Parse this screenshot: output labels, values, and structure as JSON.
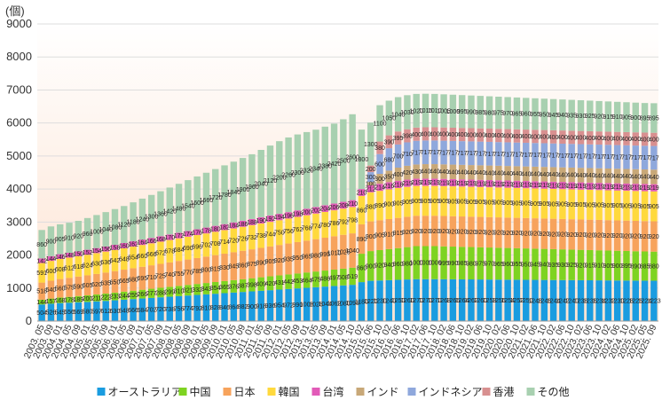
{
  "chart_data": {
    "type": "bar",
    "stacked": true,
    "ylabel": "(個)",
    "ylim": [
      0,
      9000
    ],
    "yticks": [
      0,
      1000,
      2000,
      3000,
      4000,
      5000,
      6000,
      7000,
      8000,
      9000
    ],
    "grid": true,
    "legend_position": "bottom",
    "categories": [
      "2003. 05",
      "2003. 09",
      "2004. 01",
      "2004. 05",
      "2004. 09",
      "2005. 01",
      "2005. 05",
      "2005. 09",
      "2006. 01",
      "2006. 05",
      "2006. 09",
      "2007. 01",
      "2007. 05",
      "2007. 09",
      "2008. 01",
      "2008. 05",
      "2008. 09",
      "2009. 01",
      "2009. 05",
      "2009. 09",
      "2010. 01",
      "2010. 05",
      "2010. 09",
      "2011. 01",
      "2011. 05",
      "2011. 09",
      "2012. 01",
      "2012. 05",
      "2012. 09",
      "2013. 01",
      "2013. 05",
      "2013. 09",
      "2014. 01",
      "2014. 05",
      "2014. 10",
      "2015. 02",
      "2015. 06",
      "2015. 10",
      "2016. 02",
      "2016. 06",
      "2016. 10",
      "2017. 02",
      "2017. 06",
      "2017. 10",
      "2018. 02",
      "2018. 06",
      "2018. 10",
      "2019. 02",
      "2019. 06",
      "2019. 10",
      "2020. 02",
      "2020. 06",
      "2020. 10",
      "2021. 02",
      "2021. 06",
      "2021. 10",
      "2022. 02",
      "2022. 06",
      "2022. 10",
      "2023. 02",
      "2023. 06",
      "2023. 10",
      "2024. 02",
      "2024. 06",
      "2024. 10",
      "2025. 02",
      "2025. 05",
      "2025. 09"
    ],
    "series": [
      {
        "name": "オーストラリア",
        "color": "#1a9ce0",
        "values": [
          504,
          526,
          545,
          556,
          569,
          580,
          597,
          612,
          630,
          648,
          666,
          684,
          702,
          720,
          738,
          756,
          774,
          792,
          810,
          828,
          846,
          864,
          882,
          900,
          918,
          936,
          954,
          972,
          990,
          1008,
          1026,
          1044,
          1062,
          1080,
          1098,
          1180,
          1220,
          1230,
          1240,
          1250,
          1260,
          1270,
          1270,
          1270,
          1268,
          1266,
          1264,
          1262,
          1260,
          1258,
          1256,
          1254,
          1252,
          1250,
          1248,
          1246,
          1244,
          1242,
          1240,
          1238,
          1236,
          1234,
          1232,
          1230,
          1228,
          1226,
          1224,
          1223
        ]
      },
      {
        "name": "中国",
        "color": "#7ed321",
        "values": [
          144,
          157,
          168,
          178,
          189,
          200,
          211,
          222,
          233,
          244,
          255,
          266,
          277,
          288,
          299,
          310,
          321,
          332,
          343,
          354,
          365,
          376,
          387,
          398,
          409,
          420,
          431,
          442,
          453,
          464,
          475,
          486,
          497,
          508,
          519,
          860,
          900,
          920,
          940,
          960,
          980,
          1000,
          1000,
          1000,
          995,
          990,
          985,
          980,
          975,
          970,
          965,
          960,
          955,
          950,
          945,
          940,
          935,
          930,
          925,
          920,
          915,
          910,
          905,
          900,
          895,
          890,
          885,
          880
        ]
      },
      {
        "name": "日本",
        "color": "#f7a35c",
        "values": [
          518,
          540,
          560,
          575,
          590,
          605,
          620,
          635,
          650,
          665,
          680,
          695,
          710,
          725,
          740,
          755,
          770,
          785,
          800,
          815,
          830,
          845,
          860,
          875,
          890,
          905,
          920,
          935,
          950,
          965,
          980,
          995,
          1010,
          1025,
          1040,
          890,
          900,
          905,
          910,
          915,
          920,
          920,
          920,
          920,
          920,
          920,
          920,
          920,
          920,
          920,
          920,
          920,
          920,
          920,
          920,
          920,
          920,
          920,
          920,
          920,
          920,
          920,
          920,
          920,
          920,
          920,
          920,
          920
        ]
      },
      {
        "name": "韓国",
        "color": "#ffd93d",
        "values": [
          591,
          600,
          608,
          612,
          618,
          624,
          630,
          636,
          642,
          648,
          654,
          660,
          666,
          672,
          678,
          684,
          690,
          696,
          702,
          708,
          714,
          720,
          726,
          732,
          738,
          744,
          750,
          756,
          762,
          768,
          774,
          780,
          786,
          792,
          798,
          860,
          880,
          890,
          900,
          905,
          905,
          905,
          905,
          905,
          905,
          905,
          905,
          905,
          905,
          905,
          905,
          905,
          905,
          905,
          905,
          905,
          905,
          905,
          905,
          905,
          905,
          905,
          905,
          905,
          905,
          905,
          905,
          905
        ]
      },
      {
        "name": "台湾",
        "color": "#e25bb8",
        "values": [
          142,
          144,
          146,
          148,
          150,
          152,
          154,
          156,
          158,
          160,
          162,
          164,
          166,
          168,
          170,
          172,
          174,
          176,
          178,
          180,
          182,
          184,
          186,
          188,
          190,
          192,
          194,
          196,
          198,
          200,
          202,
          204,
          206,
          208,
          210,
          210,
          212,
          214,
          216,
          218,
          219,
          219,
          219,
          219,
          219,
          219,
          219,
          219,
          219,
          219,
          219,
          219,
          219,
          219,
          219,
          219,
          219,
          219,
          219,
          219,
          219,
          219,
          219,
          219,
          219,
          219,
          219,
          219
        ]
      },
      {
        "name": "インド",
        "color": "#c8a878",
        "values": [
          0,
          0,
          0,
          0,
          0,
          0,
          0,
          0,
          0,
          0,
          0,
          0,
          0,
          0,
          0,
          0,
          0,
          0,
          0,
          0,
          0,
          0,
          0,
          0,
          0,
          0,
          0,
          0,
          0,
          0,
          0,
          0,
          0,
          0,
          0,
          0,
          100,
          300,
          350,
          400,
          420,
          430,
          440,
          440,
          440,
          440,
          440,
          440,
          440,
          440,
          440,
          440,
          440,
          440,
          440,
          440,
          440,
          440,
          440,
          440,
          440,
          440,
          440,
          440,
          440,
          440,
          440,
          440
        ]
      },
      {
        "name": "インドネシア",
        "color": "#8fa8dc",
        "values": [
          0,
          0,
          0,
          0,
          0,
          0,
          0,
          0,
          0,
          0,
          0,
          0,
          0,
          0,
          0,
          0,
          0,
          0,
          0,
          0,
          0,
          0,
          0,
          0,
          0,
          0,
          0,
          0,
          0,
          0,
          0,
          0,
          0,
          0,
          0,
          0,
          300,
          600,
          680,
          700,
          710,
          717,
          717,
          717,
          717,
          717,
          717,
          717,
          717,
          717,
          717,
          717,
          717,
          717,
          717,
          717,
          717,
          717,
          717,
          717,
          717,
          717,
          717,
          717,
          717,
          717,
          717,
          717
        ]
      },
      {
        "name": "香港",
        "color": "#d89090",
        "values": [
          0,
          0,
          0,
          0,
          0,
          0,
          0,
          0,
          0,
          0,
          0,
          0,
          0,
          0,
          0,
          0,
          0,
          0,
          0,
          0,
          0,
          0,
          0,
          0,
          0,
          0,
          0,
          0,
          0,
          0,
          0,
          0,
          0,
          0,
          0,
          0,
          200,
          380,
          390,
          395,
          398,
          400,
          400,
          400,
          400,
          400,
          400,
          400,
          400,
          400,
          400,
          400,
          400,
          400,
          400,
          400,
          400,
          400,
          400,
          400,
          400,
          400,
          400,
          400,
          400,
          400,
          400,
          400
        ]
      },
      {
        "name": "その他",
        "color": "#a8d0b0",
        "values": [
          860,
          900,
          905,
          910,
          920,
          960,
          1000,
          1040,
          1080,
          1120,
          1180,
          1240,
          1300,
          1360,
          1420,
          1480,
          1540,
          1600,
          1660,
          1720,
          1780,
          1840,
          1900,
          1960,
          2040,
          2120,
          2200,
          2260,
          2300,
          2320,
          2340,
          2380,
          2420,
          2500,
          2600,
          1800,
          1300,
          1100,
          1050,
          1040,
          1030,
          1020,
          1015,
          1010,
          1005,
          1000,
          995,
          990,
          985,
          980,
          975,
          970,
          965,
          960,
          955,
          950,
          945,
          940,
          935,
          930,
          925,
          920,
          915,
          910,
          905,
          900,
          895,
          895
        ]
      }
    ]
  }
}
